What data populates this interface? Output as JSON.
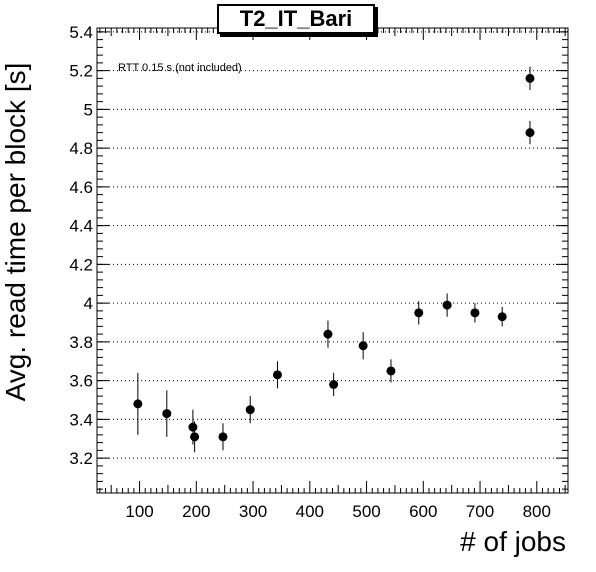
{
  "chart_data": {
    "type": "scatter",
    "title": "T2_IT_Bari",
    "xlabel": "# of jobs",
    "ylabel": "Avg. read time per block [s]",
    "annotation": "RTT 0.15 s (not included)",
    "xlim": [
      25,
      855
    ],
    "ylim": [
      3.02,
      5.42
    ],
    "xticks": [
      100,
      200,
      300,
      400,
      500,
      600,
      700,
      800
    ],
    "yticks": [
      3.2,
      3.4,
      3.6,
      3.8,
      4,
      4.2,
      4.4,
      4.6,
      4.8,
      5,
      5.2,
      5.4
    ],
    "ytick_labels": [
      "3.2",
      "3.4",
      "3.6",
      "3.8",
      "4",
      "4.2",
      "4.4",
      "4.6",
      "4.8",
      "5",
      "5.2",
      "5.4"
    ],
    "xtick_labels": [
      "100",
      "200",
      "300",
      "400",
      "500",
      "600",
      "700",
      "800"
    ],
    "grid": "horizontal dotted",
    "points": [
      {
        "x": 97,
        "y": 3.48,
        "err": 0.16
      },
      {
        "x": 148,
        "y": 3.43,
        "err": 0.12
      },
      {
        "x": 194,
        "y": 3.36,
        "err": 0.09
      },
      {
        "x": 197,
        "y": 3.31,
        "err": 0.08
      },
      {
        "x": 247,
        "y": 3.31,
        "err": 0.07
      },
      {
        "x": 295,
        "y": 3.45,
        "err": 0.07
      },
      {
        "x": 343,
        "y": 3.63,
        "err": 0.07
      },
      {
        "x": 432,
        "y": 3.84,
        "err": 0.07
      },
      {
        "x": 442,
        "y": 3.58,
        "err": 0.06
      },
      {
        "x": 494,
        "y": 3.78,
        "err": 0.07
      },
      {
        "x": 543,
        "y": 3.65,
        "err": 0.06
      },
      {
        "x": 592,
        "y": 3.95,
        "err": 0.06
      },
      {
        "x": 642,
        "y": 3.99,
        "err": 0.06
      },
      {
        "x": 691,
        "y": 3.95,
        "err": 0.05
      },
      {
        "x": 739,
        "y": 3.93,
        "err": 0.05
      },
      {
        "x": 788,
        "y": 5.16,
        "err": 0.06
      },
      {
        "x": 788,
        "y": 4.88,
        "err": 0.06
      }
    ],
    "marker_color": "#000000"
  }
}
